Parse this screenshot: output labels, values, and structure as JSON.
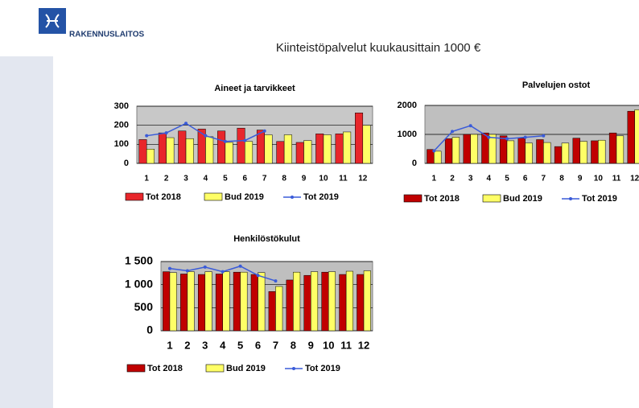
{
  "header": {
    "logo_text": "RAKENNUSLAITOS",
    "title": "Kiinteistöpalvelut kuukausittain 1000 €"
  },
  "chart_data": [
    {
      "type": "bar",
      "title": "Aineet ja tarvikkeet",
      "categories": [
        "1",
        "2",
        "3",
        "4",
        "5",
        "6",
        "7",
        "8",
        "9",
        "10",
        "11",
        "12"
      ],
      "ylim": [
        0,
        300
      ],
      "yticks": [
        0,
        100,
        200,
        300
      ],
      "grid": true,
      "plot_color": "#c8c8c8",
      "series": [
        {
          "name": "Tot 2018",
          "type": "bar",
          "color": "#e8262b",
          "values": [
            125,
            160,
            170,
            180,
            170,
            185,
            175,
            115,
            110,
            155,
            155,
            265
          ]
        },
        {
          "name": "Bud 2019",
          "type": "bar",
          "color": "#ffff66",
          "values": [
            75,
            135,
            130,
            140,
            110,
            115,
            150,
            150,
            120,
            150,
            165,
            200
          ]
        },
        {
          "name": "Tot 2019",
          "type": "line",
          "color": "#3a5bd9",
          "values": [
            145,
            160,
            210,
            145,
            115,
            120,
            170,
            null,
            null,
            null,
            null,
            null
          ]
        }
      ]
    },
    {
      "type": "bar",
      "title": "Palvelujen ostot",
      "categories": [
        "1",
        "2",
        "3",
        "4",
        "5",
        "6",
        "7",
        "8",
        "9",
        "10",
        "11",
        "12"
      ],
      "ylim": [
        0,
        2000
      ],
      "yticks": [
        0,
        1000,
        2000
      ],
      "grid": true,
      "plot_color": "#bfbfbf",
      "series": [
        {
          "name": "Tot 2018",
          "type": "bar",
          "color": "#c00000",
          "values": [
            480,
            850,
            1000,
            1050,
            950,
            870,
            820,
            580,
            870,
            780,
            1050,
            1800
          ]
        },
        {
          "name": "Bud 2019",
          "type": "bar",
          "color": "#ffff66",
          "values": [
            420,
            900,
            1000,
            1000,
            780,
            700,
            720,
            700,
            760,
            800,
            950,
            1850
          ]
        },
        {
          "name": "Tot 2019",
          "type": "line",
          "color": "#3a5bd9",
          "values": [
            430,
            1100,
            1300,
            900,
            850,
            900,
            950,
            null,
            null,
            null,
            null,
            null
          ]
        }
      ]
    },
    {
      "type": "bar",
      "title": "Henkilöstökulut",
      "categories": [
        "1",
        "2",
        "3",
        "4",
        "5",
        "6",
        "7",
        "8",
        "9",
        "10",
        "11",
        "12"
      ],
      "ylim": [
        0,
        1500
      ],
      "yticks": [
        0,
        500,
        {
          "value": 1000,
          "label": "1 000"
        },
        {
          "value": 1500,
          "label": "1 500"
        }
      ],
      "grid": true,
      "plot_color": "#bfbfbf",
      "series": [
        {
          "name": "Tot 2018",
          "type": "bar",
          "color": "#c00000",
          "values": [
            1280,
            1230,
            1220,
            1230,
            1270,
            1220,
            850,
            1100,
            1200,
            1270,
            1220,
            1220
          ]
        },
        {
          "name": "Bud 2019",
          "type": "bar",
          "color": "#ffff66",
          "values": [
            1260,
            1280,
            1280,
            1280,
            1270,
            1260,
            960,
            1270,
            1280,
            1280,
            1290,
            1300
          ]
        },
        {
          "name": "Tot 2019",
          "type": "line",
          "color": "#3a5bd9",
          "values": [
            1350,
            1300,
            1380,
            1280,
            1400,
            1200,
            1080,
            null,
            null,
            null,
            null,
            null
          ]
        }
      ]
    }
  ]
}
